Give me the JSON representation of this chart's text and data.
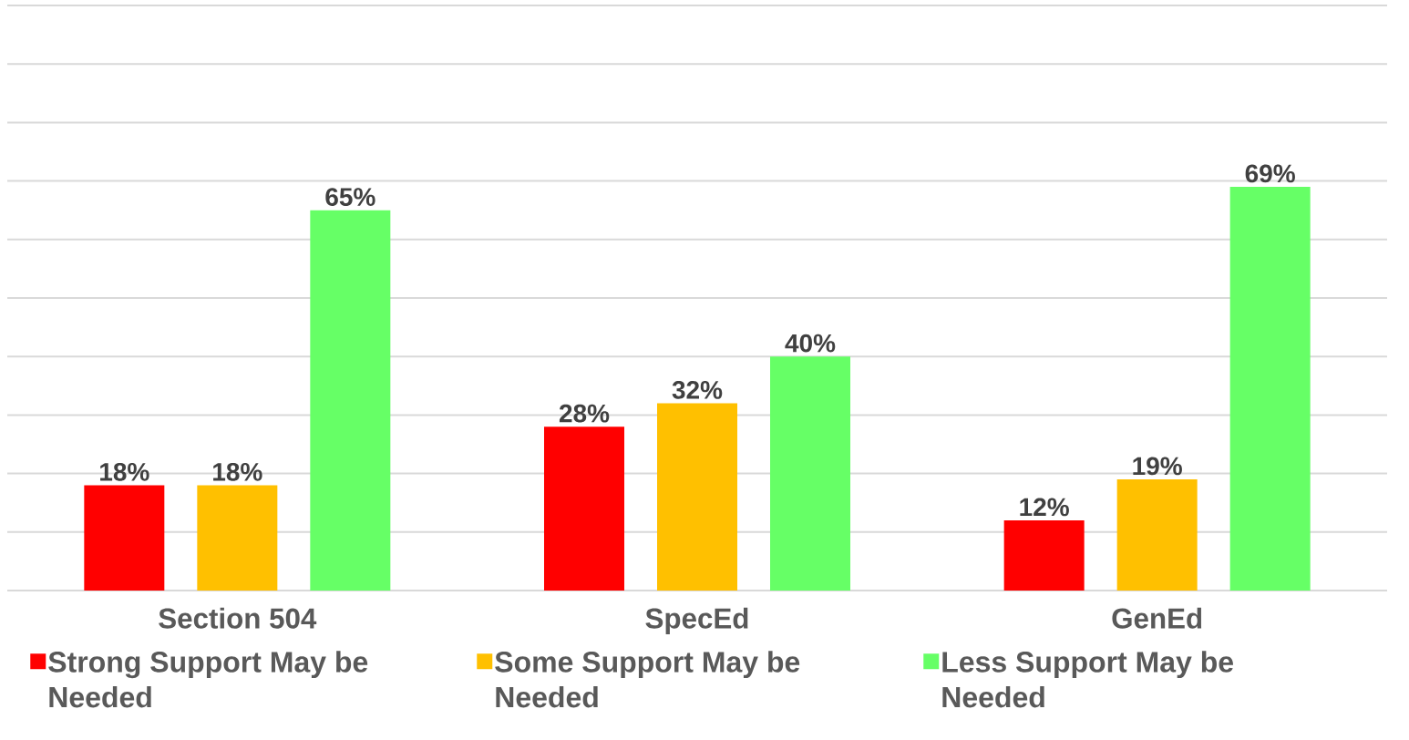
{
  "chart_data": {
    "type": "bar",
    "categories": [
      "Section 504",
      "SpecEd",
      "GenEd"
    ],
    "series": [
      {
        "name": "Strong Support May be Needed",
        "color": "#ff0000",
        "values": [
          18,
          28,
          12
        ],
        "value_labels": [
          "18%",
          "28%",
          "12%"
        ]
      },
      {
        "name": "Some Support May be Needed",
        "color": "#ffc000",
        "values": [
          18,
          32,
          19
        ],
        "value_labels": [
          "18%",
          "32%",
          "19%"
        ]
      },
      {
        "name": "Less Support May be Needed",
        "color": "#66ff66",
        "values": [
          65,
          40,
          69
        ],
        "value_labels": [
          "65%",
          "40%",
          "69%"
        ]
      }
    ],
    "ylim": [
      0,
      100
    ],
    "yticks": [
      {
        "value": 0,
        "label": null
      },
      {
        "value": 10,
        "label": null
      },
      {
        "value": 20,
        "label": null
      },
      {
        "value": 30,
        "label": null
      },
      {
        "value": 40,
        "label": null
      },
      {
        "value": 50,
        "label": null
      },
      {
        "value": 60,
        "label": null
      },
      {
        "value": 70,
        "label": null
      },
      {
        "value": 80,
        "label": null
      },
      {
        "value": 90,
        "label": null
      },
      {
        "value": 100,
        "label": null
      }
    ],
    "grid": "y",
    "legend": "bottom",
    "tick_labels": "x"
  }
}
